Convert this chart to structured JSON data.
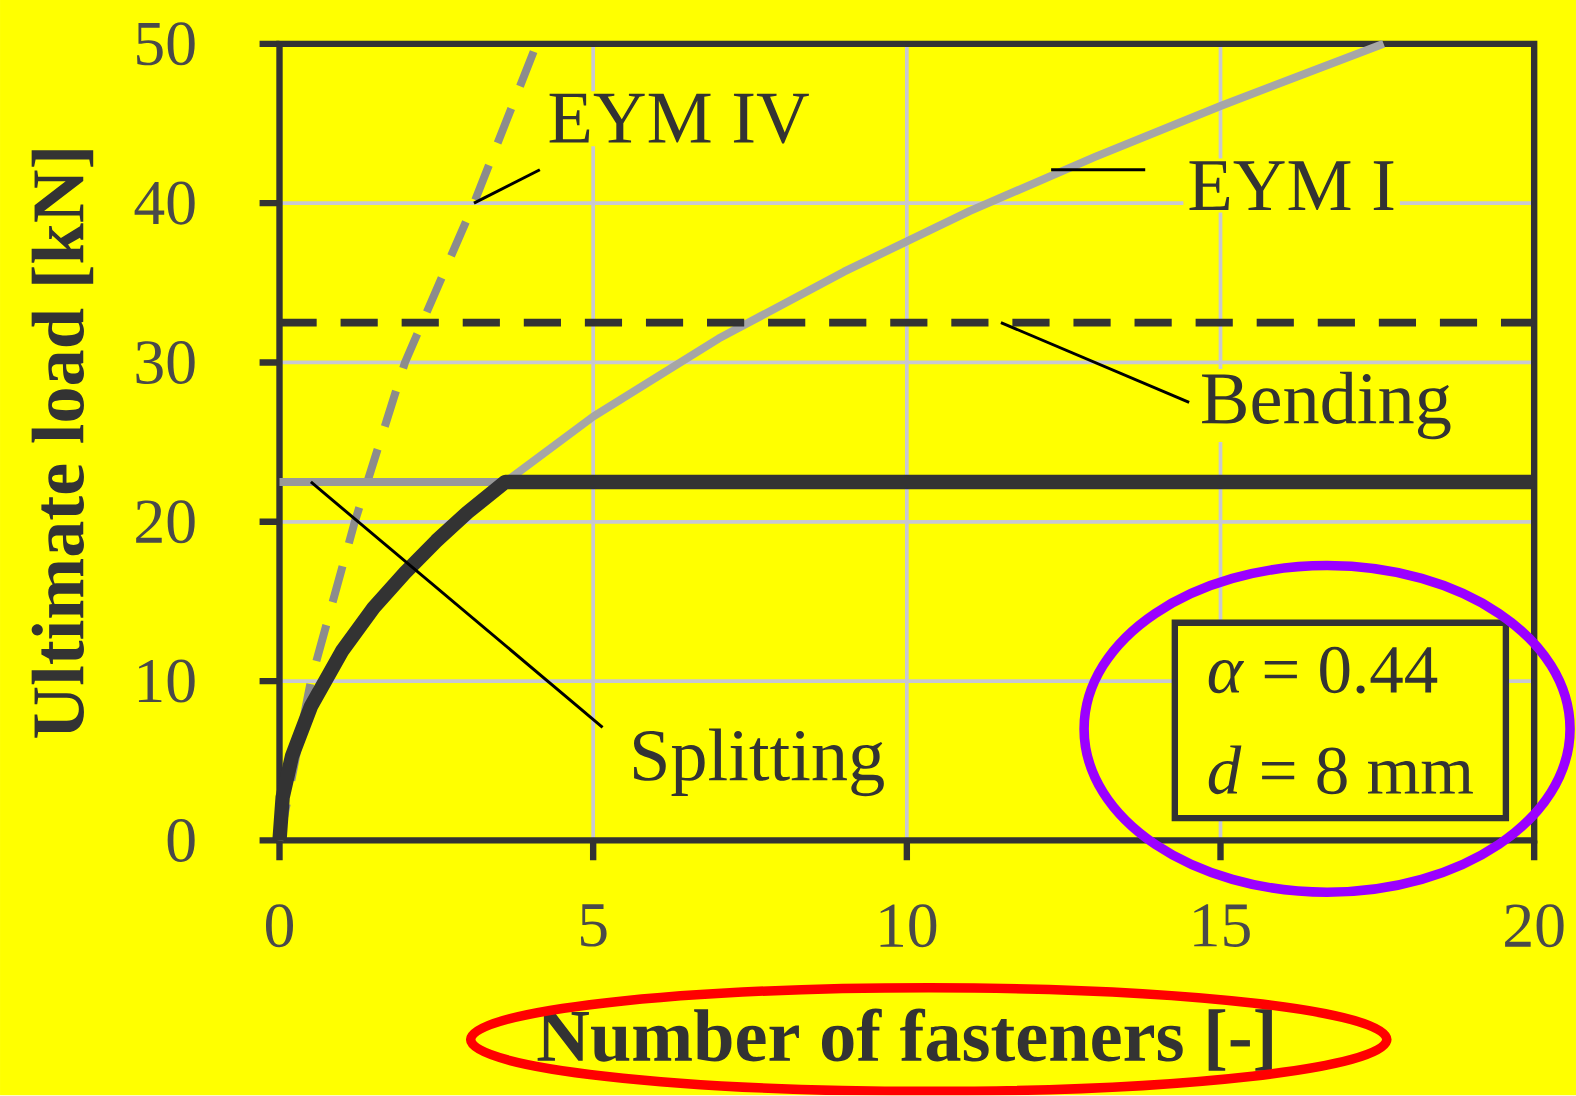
{
  "chart_data": {
    "type": "line",
    "xlabel": "Number of fasteners [-]",
    "ylabel": "Ultimate load [kN]",
    "xlim": [
      0,
      20
    ],
    "ylim": [
      0,
      50
    ],
    "xticks": [
      0,
      5,
      10,
      15,
      20
    ],
    "yticks": [
      0,
      10,
      20,
      30,
      40,
      50
    ],
    "grid": true,
    "marker": "none",
    "series": [
      {
        "name": "EYM IV",
        "color": "#8c8c8c",
        "line_style": "dashed",
        "x": [
          0,
          0.5,
          1.2,
          2.0,
          3.1,
          4.1
        ],
        "values": [
          0,
          10,
          20,
          30,
          40,
          50
        ]
      },
      {
        "name": "EYM I",
        "color": "#a6a6a6",
        "line_style": "solid",
        "x": [
          3.6,
          5,
          7,
          9,
          11,
          13,
          15,
          17.6
        ],
        "values": [
          22.5,
          26.6,
          31.5,
          35.7,
          39.5,
          42.9,
          46.1,
          50
        ]
      },
      {
        "name": "Bending",
        "color": "#333333",
        "line_style": "dashed",
        "x": [
          0,
          20
        ],
        "values": [
          32.5,
          32.5
        ]
      },
      {
        "name": "Splitting",
        "color": "#999999",
        "line_style": "solid",
        "x": [
          0,
          3.6
        ],
        "values": [
          22.5,
          22.5
        ]
      },
      {
        "color": "#333333",
        "line_style": "solid",
        "x": [
          0,
          0.05,
          0.2,
          0.5,
          1,
          1.5,
          2,
          2.5,
          3,
          3.6,
          20
        ],
        "values": [
          0,
          2.7,
          5.3,
          8.4,
          11.9,
          14.6,
          16.8,
          18.8,
          20.6,
          22.5,
          22.5
        ]
      }
    ],
    "annotations": [
      "*α* = 0.44",
      "*d* = 8 mm"
    ]
  }
}
